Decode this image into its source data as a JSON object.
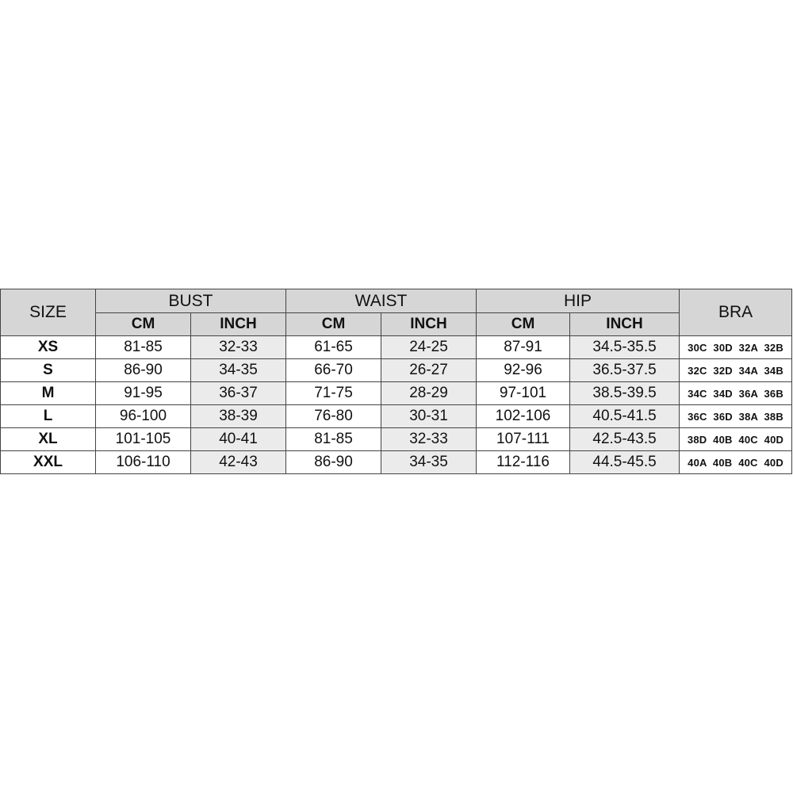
{
  "headers": {
    "size": "SIZE",
    "bust": "BUST",
    "waist": "WAIST",
    "hip": "HIP",
    "bra": "BRA",
    "cm": "CM",
    "inch": "INCH"
  },
  "rows": [
    {
      "size": "XS",
      "bust_cm": "81-85",
      "bust_in": "32-33",
      "waist_cm": "61-65",
      "waist_in": "24-25",
      "hip_cm": "87-91",
      "hip_in": "34.5-35.5",
      "bra": "30C 30D 32A 32B"
    },
    {
      "size": "S",
      "bust_cm": "86-90",
      "bust_in": "34-35",
      "waist_cm": "66-70",
      "waist_in": "26-27",
      "hip_cm": "92-96",
      "hip_in": "36.5-37.5",
      "bra": "32C 32D 34A 34B"
    },
    {
      "size": "M",
      "bust_cm": "91-95",
      "bust_in": "36-37",
      "waist_cm": "71-75",
      "waist_in": "28-29",
      "hip_cm": "97-101",
      "hip_in": "38.5-39.5",
      "bra": "34C 34D 36A 36B"
    },
    {
      "size": "L",
      "bust_cm": "96-100",
      "bust_in": "38-39",
      "waist_cm": "76-80",
      "waist_in": "30-31",
      "hip_cm": "102-106",
      "hip_in": "40.5-41.5",
      "bra": "36C 36D 38A 38B"
    },
    {
      "size": "XL",
      "bust_cm": "101-105",
      "bust_in": "40-41",
      "waist_cm": "81-85",
      "waist_in": "32-33",
      "hip_cm": "107-111",
      "hip_in": "42.5-43.5",
      "bra": "38D 40B 40C 40D"
    },
    {
      "size": "XXL",
      "bust_cm": "106-110",
      "bust_in": "42-43",
      "waist_cm": "86-90",
      "waist_in": "34-35",
      "hip_cm": "112-116",
      "hip_in": "44.5-45.5",
      "bra": "40A 40B 40C 40D"
    }
  ]
}
